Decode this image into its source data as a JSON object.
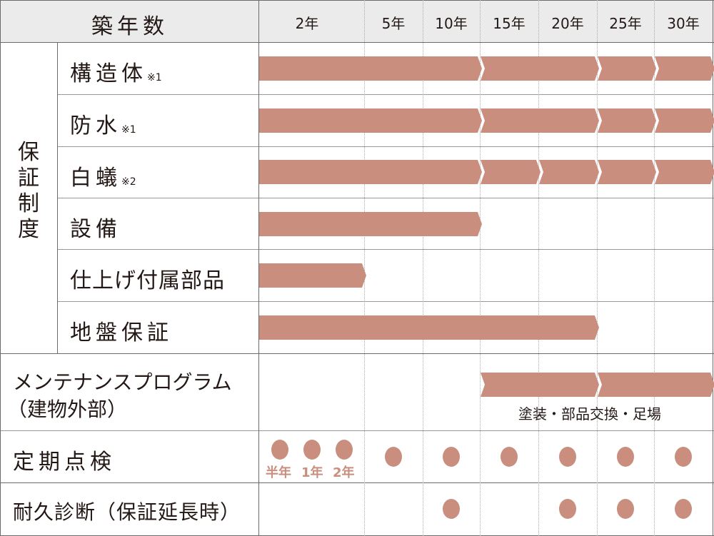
{
  "header": {
    "title": "築年数",
    "years": [
      "2年",
      "5年",
      "10年",
      "15年",
      "20年",
      "25年",
      "30年"
    ]
  },
  "group_label": [
    "保",
    "証",
    "制",
    "度"
  ],
  "rows": {
    "structure": {
      "label": "構造体",
      "note": "※1"
    },
    "waterproof": {
      "label": "防水",
      "note": "※1"
    },
    "termite": {
      "label": "白蟻",
      "note": "※2"
    },
    "equipment": {
      "label": "設備"
    },
    "finish": {
      "label": "仕上げ付属部品"
    },
    "ground": {
      "label": "地盤保証"
    },
    "maintenance": {
      "label": "メンテナンスプログラム",
      "sub": "（建物外部）",
      "caption": "塗装・部品交換・足場"
    },
    "inspection": {
      "label": "定期点検",
      "early_labels": [
        "半年",
        "1年",
        "2年"
      ]
    },
    "diagnosis": {
      "label": "耐久診断（保証延長時）"
    }
  },
  "colors": {
    "bar": "#c98e7e",
    "header_bg": "#ebebeb"
  },
  "boundary_years": [
    0,
    2,
    5,
    10,
    15,
    20,
    25,
    30
  ],
  "bars": [
    {
      "row": "structure",
      "segments": [
        [
          0,
          10
        ],
        [
          10,
          20
        ],
        [
          20,
          25
        ],
        [
          25,
          30
        ]
      ]
    },
    {
      "row": "waterproof",
      "segments": [
        [
          0,
          10
        ],
        [
          10,
          20
        ],
        [
          20,
          25
        ],
        [
          25,
          30
        ]
      ]
    },
    {
      "row": "termite",
      "segments": [
        [
          0,
          10
        ],
        [
          10,
          15
        ],
        [
          15,
          20
        ],
        [
          20,
          25
        ],
        [
          25,
          30
        ]
      ]
    },
    {
      "row": "equipment",
      "segments": [
        [
          0,
          10
        ]
      ]
    },
    {
      "row": "finish",
      "segments": [
        [
          0,
          2
        ]
      ]
    },
    {
      "row": "ground",
      "segments": [
        [
          0,
          20
        ]
      ]
    },
    {
      "row": "maintenance",
      "segments": [
        [
          10,
          20
        ],
        [
          20,
          30
        ]
      ]
    }
  ],
  "inspection_columns": [
    5,
    10,
    15,
    20,
    25,
    30
  ],
  "diagnosis_columns": [
    10,
    20,
    25,
    30
  ]
}
